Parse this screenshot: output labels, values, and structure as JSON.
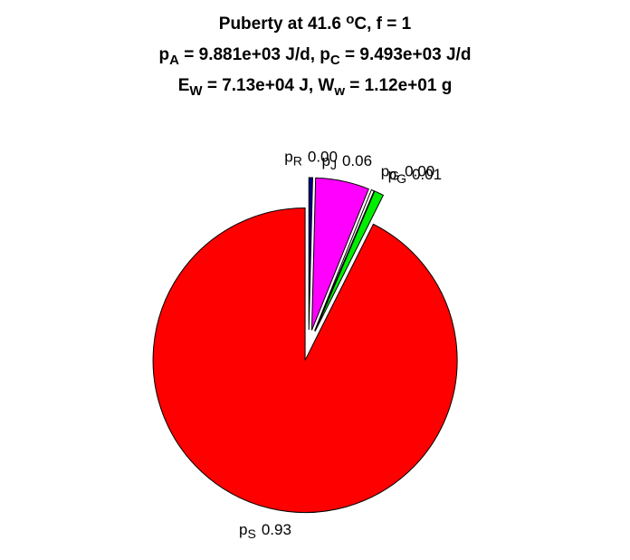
{
  "chart_data": {
    "type": "pie",
    "title": [
      [
        {
          "t": "Puberty at 41.6 "
        },
        {
          "sup": "o"
        },
        {
          "t": "C, f = 1"
        }
      ],
      [
        {
          "t": "p"
        },
        {
          "sub": "A"
        },
        {
          "t": " = 9.881e+03 J/d,  p"
        },
        {
          "sub": "C"
        },
        {
          "t": " = 9.493e+03 J/d"
        }
      ],
      [
        {
          "t": "E"
        },
        {
          "sub": "W"
        },
        {
          "t": " = 7.13e+04 J, W"
        },
        {
          "sub": "w"
        },
        {
          "t": " = 1.12e+01 g"
        }
      ]
    ],
    "labels": [
      {
        "base": "p",
        "sub": "R"
      },
      {
        "base": "p",
        "sub": "J"
      },
      {
        "base": "p",
        "sub": "G"
      },
      {
        "base": "p",
        "sub": "G"
      },
      {
        "base": "p",
        "sub": "S"
      }
    ],
    "values": [
      0.004,
      0.057,
      0.003,
      0.01,
      0.926
    ],
    "value_labels": [
      "0.00",
      "0.06",
      "0.00",
      "0.01",
      "0.93"
    ],
    "colors": [
      "#00008b",
      "#ff00ff",
      "#ffffff",
      "#00ee00",
      "#ff0000"
    ],
    "explode": true
  }
}
